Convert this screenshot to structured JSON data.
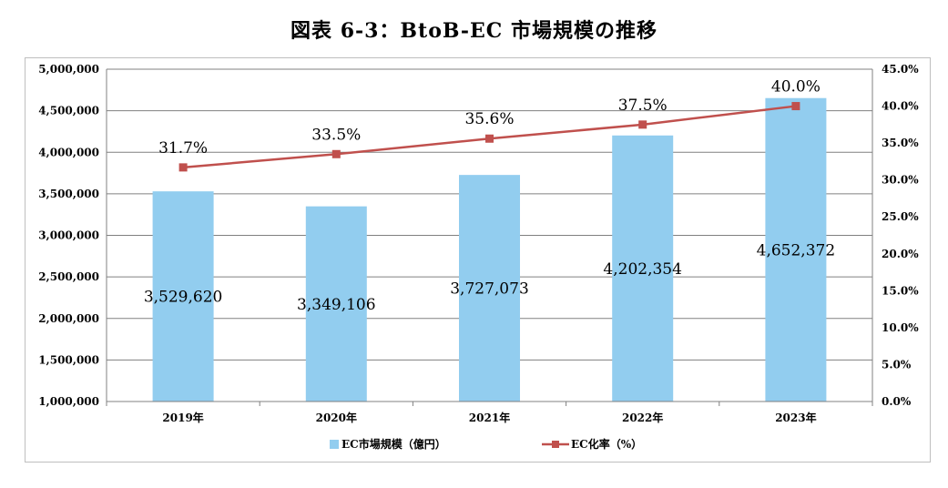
{
  "chart_data": {
    "type": "bar",
    "title": "図表 6-3：BtoB-EC 市場規模の推移",
    "categories": [
      "2019年",
      "2020年",
      "2021年",
      "2022年",
      "2023年"
    ],
    "series": [
      {
        "name": "EC市場規模（億円）",
        "type": "bar",
        "axis": "left",
        "color": "#92CDEF",
        "values": [
          3529620,
          3349106,
          3727073,
          4202354,
          4652372
        ],
        "labels": [
          "3,529,620",
          "3,349,106",
          "3,727,073",
          "4,202,354",
          "4,652,372"
        ]
      },
      {
        "name": "EC化率（%）",
        "type": "line",
        "axis": "right",
        "color": "#C0504D",
        "marker": "square",
        "values": [
          31.7,
          33.5,
          35.6,
          37.5,
          40.0
        ],
        "labels": [
          "31.7%",
          "33.5%",
          "35.6%",
          "37.5%",
          "40.0%"
        ]
      }
    ],
    "y_left": {
      "ylim": [
        1000000,
        5000000
      ],
      "ticks": [
        1000000,
        1500000,
        2000000,
        2500000,
        3000000,
        3500000,
        4000000,
        4500000,
        5000000
      ],
      "tick_labels": [
        "1,000,000",
        "1,500,000",
        "2,000,000",
        "2,500,000",
        "3,000,000",
        "3,500,000",
        "4,000,000",
        "4,500,000",
        "5,000,000"
      ]
    },
    "y_right": {
      "ylim": [
        0,
        45
      ],
      "ticks": [
        0,
        5,
        10,
        15,
        20,
        25,
        30,
        35,
        40,
        45
      ],
      "tick_labels": [
        "0.0%",
        "5.0%",
        "10.0%",
        "15.0%",
        "20.0%",
        "25.0%",
        "30.0%",
        "35.0%",
        "40.0%",
        "45.0%"
      ]
    },
    "grid": true,
    "legend_position": "bottom",
    "gridline_color": "#808080"
  }
}
